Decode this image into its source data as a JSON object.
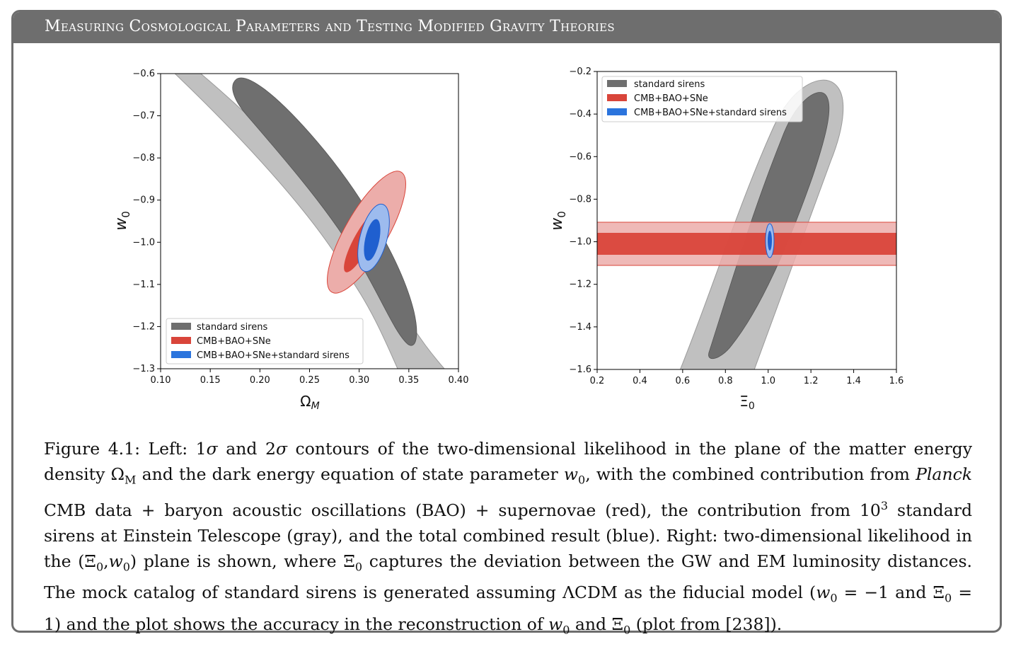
{
  "header": {
    "title": "Measuring Cosmological Parameters and Testing Modified Gravity Theories"
  },
  "colors": {
    "header_bg": "#6e6e6e",
    "sirens_inner": "#6f6f6f",
    "sirens_outer": "#c0c0c0",
    "cmb_inner": "#d9453a",
    "cmb_outer": "#ecadaa",
    "combined_inner": "#1f5fcf",
    "combined_outer": "#9dbbee"
  },
  "legend": {
    "items": [
      "standard sirens",
      "CMB+BAO+SNe",
      "CMB+BAO+SNe+standard sirens"
    ]
  },
  "chart_data": [
    {
      "type": "contour",
      "xlabel": "Ω_M",
      "ylabel": "w_0",
      "xlim": [
        0.1,
        0.4
      ],
      "ylim": [
        -1.3,
        -0.6
      ],
      "xticks": [
        "0.10",
        "0.15",
        "0.20",
        "0.25",
        "0.30",
        "0.35",
        "0.40"
      ],
      "yticks": [
        "−0.6",
        "−0.7",
        "−0.8",
        "−0.9",
        "−1.0",
        "−1.1",
        "−1.2",
        "−1.3"
      ],
      "legend_position": "lower-left",
      "series": [
        {
          "name": "standard sirens",
          "center": [
            0.31,
            -1.0
          ],
          "shape": "banana, 1σ and 2σ"
        },
        {
          "name": "CMB+BAO+SNe",
          "center": [
            0.31,
            -1.0
          ],
          "shape": "ellipse, 1σ and 2σ"
        },
        {
          "name": "CMB+BAO+SNe+standard sirens",
          "center": [
            0.3125,
            -0.98
          ],
          "shape": "ellipse, 1σ and 2σ"
        }
      ]
    },
    {
      "type": "contour",
      "xlabel": "Ξ_0",
      "ylabel": "w_0",
      "xlim": [
        0.2,
        1.6
      ],
      "ylim": [
        -1.6,
        -0.2
      ],
      "xticks": [
        "0.2",
        "0.4",
        "0.6",
        "0.8",
        "1.0",
        "1.2",
        "1.4",
        "1.6"
      ],
      "yticks": [
        "−0.2",
        "−0.4",
        "−0.6",
        "−0.8",
        "−1.0",
        "−1.2",
        "−1.4",
        "−1.6"
      ],
      "legend_position": "upper-left",
      "series": [
        {
          "name": "standard sirens",
          "center": [
            1.0,
            -1.0
          ],
          "shape": "tilted ellipse, 1σ and 2σ"
        },
        {
          "name": "CMB+BAO+SNe",
          "center": [
            1.0,
            -1.0
          ],
          "shape": "horizontal band, 1σ [-1.05,-0.95] and 2σ [-1.11,-0.91]"
        },
        {
          "name": "CMB+BAO+SNe+standard sirens",
          "center": [
            1.0,
            -1.0
          ],
          "shape": "narrow ellipse, 1σ and 2σ"
        }
      ]
    }
  ],
  "caption": {
    "p1": "Figure 4.1: Left: 1",
    "sigma": "σ",
    "p2": " and 2",
    "p3": " contours of the two-dimensional likelihood in the plane of the matter energy density Ω",
    "sub_M": "M",
    "p4": " and the dark energy equation of state parameter ",
    "w": "w",
    "sub_0": "0",
    "p5": ", with the combined contribution from ",
    "planck": "Planck",
    "p6": " CMB data + baryon acoustic oscillations (BAO) + supernovae (red), the contribution from 10",
    "sup_3": "3",
    "p7": " standard sirens at Einstein Telescope (gray), and the total combined result (blue). Right: two-dimensional likelihood in the (Ξ",
    "p8": ",",
    "p9": ") plane is shown, where Ξ",
    "p10": " captures the deviation between the GW and EM luminosity distances. The mock catalog of standard sirens is generated assuming ΛCDM as the fiducial model (",
    "p11": " = −1 and Ξ",
    "p12": " = 1) and the plot shows the accuracy in the reconstruction of ",
    "p13": " and Ξ",
    "p14": " (plot from [238])."
  }
}
